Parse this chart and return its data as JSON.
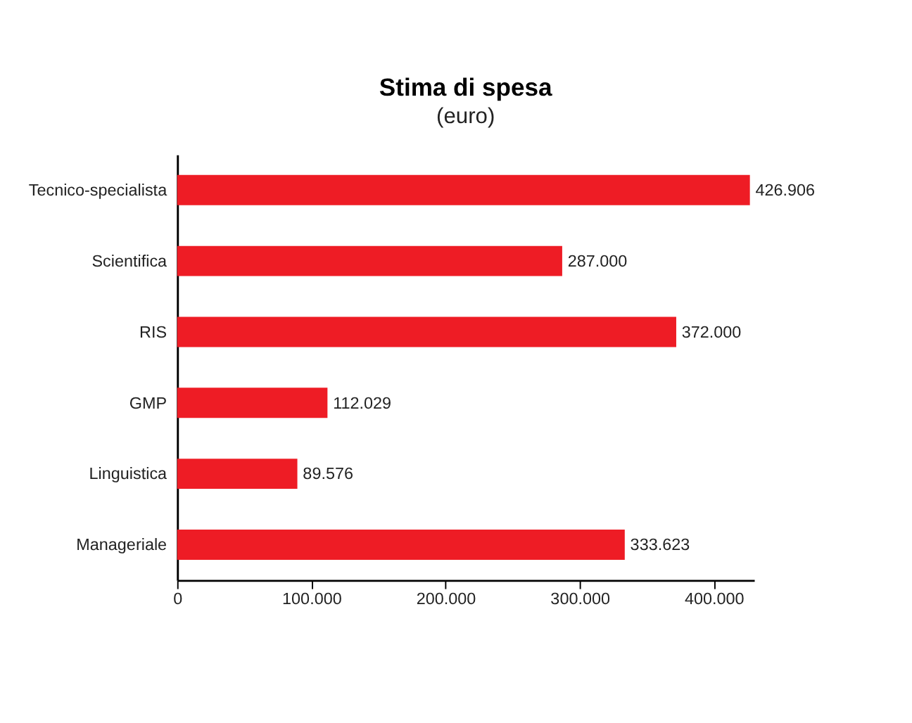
{
  "chart_data": {
    "type": "bar",
    "orientation": "horizontal",
    "title": "Stima di spesa",
    "subtitle": "(euro)",
    "categories": [
      "Tecnico-specialista",
      "Scientifica",
      "RIS",
      "GMP",
      "Linguistica",
      "Manageriale"
    ],
    "values": [
      426906,
      287000,
      372000,
      112029,
      89576,
      333623
    ],
    "value_labels": [
      "426.906",
      "287.000",
      "372.000",
      "112.029",
      "89.576",
      "333.623"
    ],
    "color": "#ee1c25",
    "xlim": [
      0,
      430000
    ],
    "xticks": [
      0,
      {
        "value": 100000,
        "label": "100.000"
      },
      {
        "value": 200000,
        "label": "200.000"
      },
      {
        "value": 300000,
        "label": "300.000"
      },
      {
        "value": 400000,
        "label": "400.000"
      }
    ],
    "grid": false
  }
}
